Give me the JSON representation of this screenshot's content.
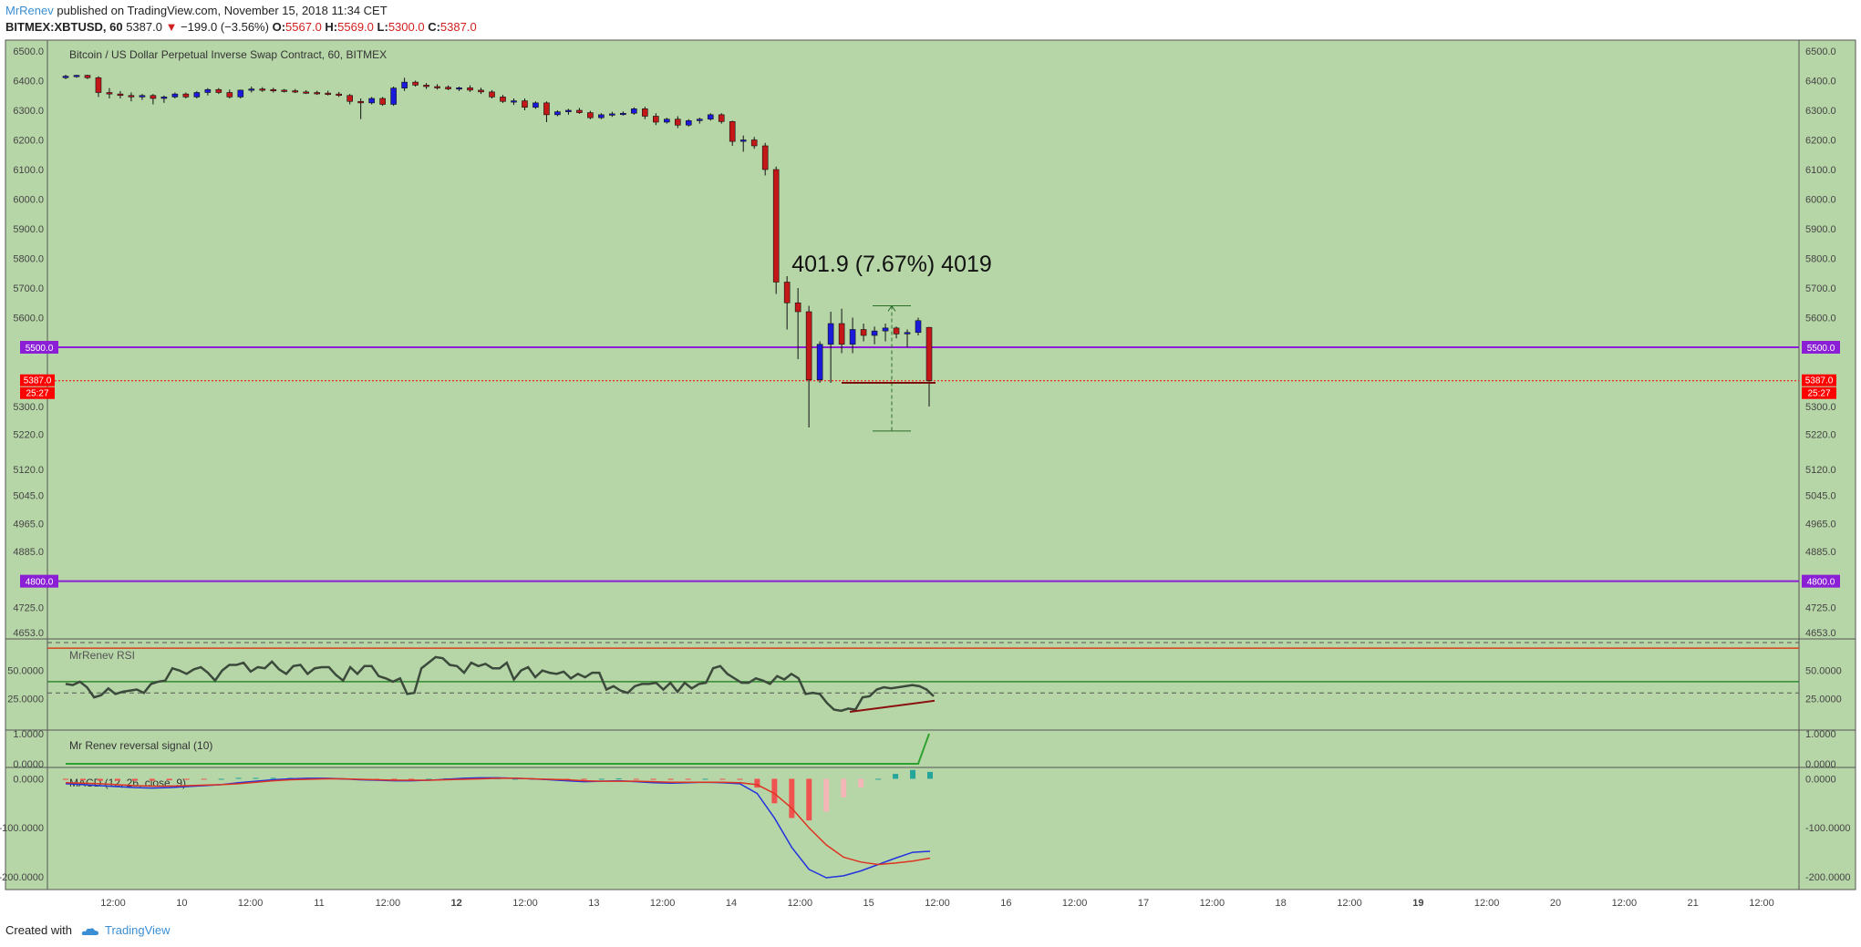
{
  "header": {
    "author": "MrRenev",
    "published": "published on TradingView.com, November 15, 2018 11:34 CET",
    "symbol": "BITMEX:XBTUSD, 60",
    "last": "5387.0",
    "arrow": "▼",
    "change": "−199.0 (−3.56%)",
    "open_label": "O:",
    "open": "5567.0",
    "high_label": "H:",
    "high": "5569.0",
    "low_label": "L:",
    "low": "5300.0",
    "close_label": "C:",
    "close": "5387.0"
  },
  "footer": {
    "created_with": "Created with",
    "brand": "TradingView"
  },
  "colors": {
    "background": "#b7d6a8",
    "up_candle": "#1a1adb",
    "down_candle": "#c41818",
    "level_line": "#8a1fd6",
    "last_price": "#ff0000",
    "rsi_line": "#3b4a3b",
    "rsi_upper": "#d9441e",
    "rsi_mid": "#2e8b2e",
    "signal_line": "#2ea22e",
    "macd_line": "#2233dd",
    "signal_macd": "#dd3322",
    "hist_pos": "#26a69a",
    "hist_neg": "#ef5350"
  },
  "chart_data": [
    {
      "type": "candlestick",
      "title": "Bitcoin / US Dollar Perpetual Inverse Swap Contract, 60, BITMEX",
      "x_ticks": [
        "12:00",
        "10",
        "12:00",
        "11",
        "12:00",
        "12",
        "12:00",
        "13",
        "12:00",
        "14",
        "12:00",
        "15",
        "12:00",
        "16",
        "12:00",
        "17",
        "12:00",
        "18",
        "12:00",
        "19",
        "12:00",
        "20",
        "12:00",
        "21",
        "12:00"
      ],
      "x_bold_ticks": [
        "12",
        "19"
      ],
      "y_ticks": [
        6500,
        6400,
        6300,
        6200,
        6100,
        6000,
        5900,
        5800,
        5700,
        5600,
        5300,
        5220,
        5120,
        5045,
        4965,
        4885,
        4725,
        4653
      ],
      "ylim": [
        4653,
        6500
      ],
      "levels": [
        5500,
        4800
      ],
      "level_labels": [
        "5500.0",
        "4800.0"
      ],
      "last_price": 5387,
      "last_price_label": "5387.0",
      "countdown": "25:27",
      "measure_label": "401.9 (7.67%) 4019",
      "candles_ohlc": [
        [
          6410,
          6420,
          6405,
          6415
        ],
        [
          6415,
          6420,
          6410,
          6418
        ],
        [
          6418,
          6420,
          6405,
          6410
        ],
        [
          6410,
          6415,
          6345,
          6360
        ],
        [
          6360,
          6375,
          6340,
          6355
        ],
        [
          6355,
          6365,
          6340,
          6350
        ],
        [
          6350,
          6360,
          6330,
          6345
        ],
        [
          6345,
          6355,
          6335,
          6350
        ],
        [
          6350,
          6355,
          6320,
          6340
        ],
        [
          6340,
          6350,
          6325,
          6345
        ],
        [
          6345,
          6360,
          6340,
          6355
        ],
        [
          6355,
          6360,
          6340,
          6345
        ],
        [
          6345,
          6365,
          6340,
          6360
        ],
        [
          6360,
          6375,
          6350,
          6370
        ],
        [
          6370,
          6375,
          6355,
          6360
        ],
        [
          6360,
          6370,
          6340,
          6345
        ],
        [
          6345,
          6370,
          6340,
          6368
        ],
        [
          6368,
          6380,
          6360,
          6372
        ],
        [
          6372,
          6378,
          6362,
          6370
        ],
        [
          6370,
          6376,
          6360,
          6368
        ],
        [
          6368,
          6372,
          6360,
          6366
        ],
        [
          6366,
          6372,
          6358,
          6362
        ],
        [
          6362,
          6368,
          6355,
          6360
        ],
        [
          6360,
          6366,
          6352,
          6358
        ],
        [
          6358,
          6366,
          6350,
          6355
        ],
        [
          6355,
          6362,
          6345,
          6350
        ],
        [
          6350,
          6355,
          6320,
          6330
        ],
        [
          6330,
          6340,
          6270,
          6325
        ],
        [
          6325,
          6345,
          6320,
          6340
        ],
        [
          6340,
          6345,
          6315,
          6320
        ],
        [
          6320,
          6380,
          6315,
          6375
        ],
        [
          6375,
          6410,
          6365,
          6395
        ],
        [
          6395,
          6400,
          6380,
          6385
        ],
        [
          6385,
          6392,
          6372,
          6380
        ],
        [
          6380,
          6388,
          6370,
          6378
        ],
        [
          6378,
          6384,
          6368,
          6372
        ],
        [
          6372,
          6380,
          6365,
          6376
        ],
        [
          6376,
          6384,
          6362,
          6368
        ],
        [
          6368,
          6376,
          6355,
          6362
        ],
        [
          6362,
          6368,
          6340,
          6345
        ],
        [
          6345,
          6352,
          6325,
          6330
        ],
        [
          6330,
          6340,
          6318,
          6332
        ],
        [
          6332,
          6340,
          6300,
          6310
        ],
        [
          6310,
          6330,
          6305,
          6325
        ],
        [
          6325,
          6330,
          6260,
          6285
        ],
        [
          6285,
          6300,
          6280,
          6295
        ],
        [
          6295,
          6305,
          6285,
          6300
        ],
        [
          6300,
          6308,
          6288,
          6292
        ],
        [
          6292,
          6298,
          6270,
          6275
        ],
        [
          6275,
          6290,
          6270,
          6285
        ],
        [
          6285,
          6295,
          6278,
          6288
        ],
        [
          6288,
          6296,
          6282,
          6290
        ],
        [
          6290,
          6310,
          6285,
          6305
        ],
        [
          6305,
          6312,
          6270,
          6280
        ],
        [
          6280,
          6290,
          6250,
          6260
        ],
        [
          6260,
          6275,
          6255,
          6270
        ],
        [
          6270,
          6280,
          6240,
          6250
        ],
        [
          6250,
          6270,
          6245,
          6265
        ],
        [
          6265,
          6275,
          6255,
          6270
        ],
        [
          6270,
          6290,
          6265,
          6285
        ],
        [
          6285,
          6290,
          6255,
          6262
        ],
        [
          6262,
          6265,
          6180,
          6195
        ],
        [
          6195,
          6215,
          6160,
          6200
        ],
        [
          6200,
          6210,
          6170,
          6180
        ],
        [
          6180,
          6190,
          6080,
          6100
        ],
        [
          6100,
          6110,
          5680,
          5720
        ],
        [
          5720,
          5740,
          5560,
          5650
        ],
        [
          5650,
          5700,
          5460,
          5620
        ],
        [
          5620,
          5640,
          5240,
          5390
        ],
        [
          5390,
          5520,
          5380,
          5510
        ],
        [
          5510,
          5620,
          5380,
          5580
        ],
        [
          5580,
          5630,
          5480,
          5510
        ],
        [
          5510,
          5600,
          5480,
          5560
        ],
        [
          5560,
          5580,
          5520,
          5540
        ],
        [
          5540,
          5570,
          5510,
          5555
        ],
        [
          5555,
          5580,
          5520,
          5565
        ],
        [
          5565,
          5570,
          5530,
          5545
        ],
        [
          5545,
          5560,
          5500,
          5550
        ],
        [
          5550,
          5600,
          5540,
          5590
        ],
        [
          5567,
          5569,
          5300,
          5387
        ]
      ]
    },
    {
      "type": "line",
      "title": "MrRenev RSI",
      "y_ticks": [
        50,
        25
      ],
      "y_tick_labels": [
        "50.0000",
        "25.0000"
      ],
      "ylim": [
        0,
        75
      ],
      "bands": [
        70,
        40,
        30
      ],
      "series": [
        {
          "name": "MrRenev RSI",
          "values": [
            38,
            37,
            40,
            35,
            26,
            28,
            34,
            29,
            31,
            32,
            33,
            30,
            38,
            40,
            41,
            52,
            50,
            47,
            51,
            53,
            48,
            41,
            50,
            55,
            55,
            57,
            49,
            53,
            52,
            58,
            51,
            47,
            54,
            55,
            47,
            52,
            53,
            53,
            46,
            41,
            53,
            47,
            54,
            54,
            45,
            43,
            40,
            43,
            29,
            30,
            52,
            57,
            62,
            61,
            55,
            54,
            48,
            57,
            54,
            56,
            52,
            52,
            57,
            42,
            50,
            53,
            44,
            50,
            48,
            47,
            49,
            43,
            47,
            44,
            48,
            48,
            33,
            36,
            32,
            30,
            36,
            38,
            38,
            39,
            33,
            39,
            31,
            39,
            34,
            38,
            39,
            52,
            54,
            47,
            43,
            39,
            39,
            43,
            41,
            38,
            45,
            42,
            47,
            43,
            29,
            30,
            29,
            21,
            15,
            14,
            16,
            15,
            26,
            27,
            33,
            35,
            34,
            35,
            36,
            37,
            36,
            33,
            27
          ]
        }
      ]
    },
    {
      "type": "line",
      "title": "Mr Renev reversal signal (10)",
      "y_ticks": [
        1,
        0
      ],
      "y_tick_labels": [
        "1.0000",
        "0.0000"
      ],
      "ylim": [
        0,
        1
      ],
      "series": [
        {
          "name": "Mr Renev reversal signal (10)",
          "values": [
            0,
            0,
            0,
            0,
            0,
            0,
            0,
            0,
            0,
            0,
            0,
            0,
            0,
            0,
            0,
            0,
            0,
            0,
            0,
            0,
            0,
            0,
            0,
            0,
            0,
            0,
            0,
            0,
            0,
            0,
            0,
            0,
            0,
            0,
            0,
            0,
            0,
            0,
            0,
            0,
            0,
            0,
            0,
            0,
            0,
            0,
            0,
            0,
            0,
            0,
            0,
            0,
            0,
            0,
            0,
            0,
            0,
            0,
            0,
            0,
            0,
            0,
            0,
            0,
            0,
            0,
            0,
            0,
            0,
            0,
            0,
            0,
            0,
            0,
            0,
            0,
            0,
            0,
            0,
            1
          ]
        }
      ]
    },
    {
      "type": "line",
      "title": "MACD (12, 26, close, 9)",
      "y_ticks": [
        0,
        -100,
        -200
      ],
      "y_tick_labels": [
        "0.0000",
        "-100.0000",
        "-200.0000"
      ],
      "ylim": [
        -215,
        12
      ],
      "series": [
        {
          "name": "MACD",
          "values": [
            -10,
            -12,
            -14,
            -16,
            -18,
            -19,
            -18,
            -16,
            -14,
            -12,
            -8,
            -5,
            -2,
            0,
            1,
            1,
            0,
            -2,
            -3,
            -4,
            -4,
            -3,
            -1,
            1,
            2,
            2,
            1,
            0,
            -2,
            -4,
            -6,
            -5,
            -4,
            -6,
            -8,
            -9,
            -8,
            -7,
            -8,
            -10,
            -30,
            -80,
            -140,
            -185,
            -202,
            -198,
            -188,
            -175,
            -162,
            -150,
            -148
          ]
        },
        {
          "name": "Signal",
          "values": [
            -8,
            -9,
            -10,
            -12,
            -14,
            -15,
            -15,
            -14,
            -13,
            -12,
            -10,
            -7,
            -4,
            -2,
            -1,
            0,
            0,
            -1,
            -2,
            -3,
            -3,
            -3,
            -2,
            -1,
            0,
            1,
            1,
            0,
            -1,
            -2,
            -4,
            -5,
            -5,
            -5,
            -6,
            -7,
            -7,
            -7,
            -7,
            -8,
            -12,
            -30,
            -60,
            -100,
            -135,
            -160,
            -170,
            -175,
            -172,
            -168,
            -162
          ]
        }
      ],
      "histogram": [
        -2,
        -3,
        -4,
        -4,
        -4,
        -4,
        -3,
        -2,
        -1,
        0,
        2,
        2,
        2,
        2,
        2,
        1,
        0,
        -1,
        -1,
        -1,
        -1,
        0,
        1,
        2,
        2,
        1,
        0,
        0,
        -1,
        -2,
        -2,
        0,
        1,
        -1,
        -2,
        -2,
        -1,
        0,
        -1,
        -2,
        -18,
        -50,
        -80,
        -85,
        -67,
        -38,
        -18,
        0,
        10,
        18,
        14
      ]
    }
  ]
}
